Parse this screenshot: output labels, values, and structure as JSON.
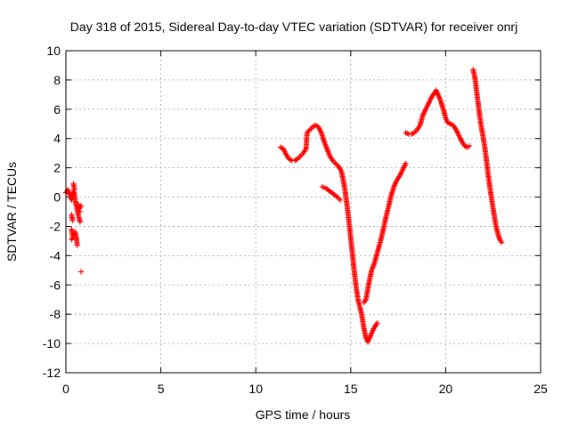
{
  "chart_data": {
    "type": "scatter",
    "title": "Day 318 of 2015, Sidereal Day-to-day VTEC variation (SDTVAR) for receiver onrj",
    "xlabel": "GPS time / hours",
    "ylabel": "SDTVAR / TECUs",
    "xlim": [
      0,
      25
    ],
    "ylim": [
      -12,
      10
    ],
    "xticks": [
      "0",
      "5",
      "10",
      "15",
      "20",
      "25"
    ],
    "yticks": [
      "-12",
      "-10",
      "-8",
      "-6",
      "-4",
      "-2",
      "0",
      "2",
      "4",
      "6",
      "8",
      "10"
    ],
    "grid": true,
    "legend": "none",
    "marker": "plus",
    "colors": {
      "series": "#ff0000",
      "grid": "#a0a0a0",
      "axes": "#000000"
    },
    "series": [
      {
        "points": [
          [
            0.0,
            0.3
          ],
          [
            0.1,
            0.5
          ],
          [
            0.15,
            0.3
          ],
          [
            0.2,
            0.2
          ],
          [
            0.25,
            0.0
          ],
          [
            0.3,
            -0.2
          ],
          [
            0.35,
            0.1
          ],
          [
            0.4,
            0.4
          ],
          [
            0.45,
            0.2
          ],
          [
            0.5,
            -0.3
          ],
          [
            0.55,
            -0.6
          ],
          [
            0.6,
            -0.9
          ],
          [
            0.65,
            -1.2
          ],
          [
            0.7,
            -1.5
          ],
          [
            0.75,
            -1.7
          ],
          [
            0.4,
            0.9
          ],
          [
            0.45,
            0.5
          ],
          [
            0.3,
            -1.2
          ],
          [
            0.35,
            -1.6
          ],
          [
            0.3,
            -2.2
          ],
          [
            0.35,
            -2.6
          ],
          [
            0.3,
            -2.9
          ],
          [
            0.5,
            -2.4
          ],
          [
            0.55,
            -2.8
          ],
          [
            0.6,
            -3.3
          ],
          [
            0.65,
            -0.5
          ],
          [
            0.7,
            -0.8
          ],
          [
            0.8,
            -0.6
          ],
          [
            0.75,
            -1.0
          ],
          [
            0.8,
            -5.1
          ],
          [
            11.3,
            3.4
          ],
          [
            11.45,
            3.3
          ],
          [
            11.6,
            2.9
          ],
          [
            11.75,
            2.6
          ],
          [
            11.9,
            2.5
          ],
          [
            12.05,
            2.5
          ],
          [
            12.2,
            2.6
          ],
          [
            12.35,
            2.8
          ],
          [
            12.5,
            3.0
          ],
          [
            12.65,
            3.3
          ],
          [
            12.7,
            4.4
          ],
          [
            12.85,
            4.6
          ],
          [
            13.0,
            4.8
          ],
          [
            13.15,
            4.9
          ],
          [
            13.3,
            4.8
          ],
          [
            13.45,
            4.4
          ],
          [
            13.6,
            3.8
          ],
          [
            13.75,
            3.3
          ],
          [
            13.9,
            2.8
          ],
          [
            14.05,
            2.5
          ],
          [
            14.2,
            2.3
          ],
          [
            14.35,
            2.1
          ],
          [
            14.5,
            1.8
          ],
          [
            14.6,
            1.2
          ],
          [
            14.7,
            0.5
          ],
          [
            14.8,
            -0.5
          ],
          [
            14.9,
            -1.6
          ],
          [
            15.0,
            -2.8
          ],
          [
            15.1,
            -4.0
          ],
          [
            15.2,
            -5.2
          ],
          [
            15.3,
            -6.3
          ],
          [
            15.4,
            -7.1
          ],
          [
            15.5,
            -7.6
          ],
          [
            15.6,
            -8.2
          ],
          [
            15.7,
            -9.0
          ],
          [
            15.8,
            -9.6
          ],
          [
            15.9,
            -9.9
          ],
          [
            16.0,
            -9.6
          ],
          [
            16.1,
            -9.3
          ],
          [
            16.2,
            -9.0
          ],
          [
            16.3,
            -8.8
          ],
          [
            16.4,
            -8.6
          ],
          [
            13.5,
            0.7
          ],
          [
            13.7,
            0.6
          ],
          [
            13.9,
            0.4
          ],
          [
            14.1,
            0.2
          ],
          [
            14.3,
            0.0
          ],
          [
            14.45,
            -0.2
          ],
          [
            15.7,
            -7.2
          ],
          [
            15.8,
            -7.0
          ],
          [
            15.9,
            -6.3
          ],
          [
            16.0,
            -5.6
          ],
          [
            16.1,
            -5.0
          ],
          [
            16.25,
            -4.5
          ],
          [
            16.4,
            -3.8
          ],
          [
            16.55,
            -3.1
          ],
          [
            16.7,
            -2.3
          ],
          [
            16.85,
            -1.4
          ],
          [
            17.0,
            -0.6
          ],
          [
            17.15,
            0.2
          ],
          [
            17.3,
            0.8
          ],
          [
            17.45,
            1.2
          ],
          [
            17.6,
            1.5
          ],
          [
            17.75,
            1.9
          ],
          [
            17.9,
            2.3
          ],
          [
            17.9,
            4.4
          ],
          [
            18.05,
            4.3
          ],
          [
            18.2,
            4.3
          ],
          [
            18.35,
            4.4
          ],
          [
            18.5,
            4.6
          ],
          [
            18.65,
            4.9
          ],
          [
            18.8,
            5.6
          ],
          [
            18.95,
            6.0
          ],
          [
            19.1,
            6.4
          ],
          [
            19.25,
            6.8
          ],
          [
            19.4,
            7.1
          ],
          [
            19.5,
            7.3
          ],
          [
            19.6,
            7.0
          ],
          [
            19.7,
            6.7
          ],
          [
            19.8,
            6.3
          ],
          [
            19.9,
            5.9
          ],
          [
            20.0,
            5.4
          ],
          [
            20.1,
            5.1
          ],
          [
            20.25,
            5.0
          ],
          [
            20.4,
            4.9
          ],
          [
            20.55,
            4.6
          ],
          [
            20.7,
            4.2
          ],
          [
            20.85,
            3.8
          ],
          [
            21.0,
            3.5
          ],
          [
            21.15,
            3.4
          ],
          [
            21.25,
            3.5
          ],
          [
            21.45,
            8.7
          ],
          [
            21.55,
            8.1
          ],
          [
            21.65,
            7.0
          ],
          [
            21.75,
            6.0
          ],
          [
            21.85,
            5.0
          ],
          [
            21.95,
            4.3
          ],
          [
            22.05,
            3.5
          ],
          [
            22.15,
            2.5
          ],
          [
            22.25,
            1.4
          ],
          [
            22.35,
            0.5
          ],
          [
            22.45,
            -0.4
          ],
          [
            22.55,
            -1.2
          ],
          [
            22.65,
            -2.0
          ],
          [
            22.75,
            -2.5
          ],
          [
            22.85,
            -2.9
          ],
          [
            22.95,
            -3.1
          ]
        ]
      }
    ]
  }
}
